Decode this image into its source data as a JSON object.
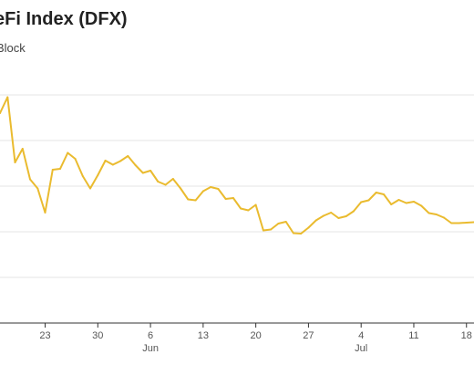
{
  "chart_data": {
    "type": "line",
    "title": "eFi Index (DFX)",
    "subtitle": "Block",
    "xlabel": "",
    "ylabel": "",
    "color": "#eabb2f",
    "grid": true,
    "x_ticks": [
      {
        "day": 23,
        "label": "23",
        "month_label": ""
      },
      {
        "day": 30,
        "label": "30",
        "month_label": ""
      },
      {
        "day": 37,
        "label": "6",
        "month_label": "Jun"
      },
      {
        "day": 44,
        "label": "13",
        "month_label": ""
      },
      {
        "day": 51,
        "label": "20",
        "month_label": ""
      },
      {
        "day": 58,
        "label": "27",
        "month_label": ""
      },
      {
        "day": 65,
        "label": "4",
        "month_label": "Jul"
      },
      {
        "day": 72,
        "label": "11",
        "month_label": ""
      },
      {
        "day": 79,
        "label": "18",
        "month_label": ""
      }
    ],
    "xlim": [
      17,
      80
    ],
    "ylim": [
      0,
      5
    ],
    "series": [
      {
        "x": [
          17,
          18,
          19,
          20,
          21,
          22,
          23,
          24,
          25,
          26,
          27,
          28,
          29,
          30,
          31,
          32,
          33,
          34,
          35,
          36,
          37,
          38,
          39,
          40,
          41,
          42,
          43,
          44,
          45,
          46,
          47,
          48,
          49,
          50,
          51,
          52,
          53,
          54,
          55,
          56,
          57,
          58,
          59,
          60,
          61,
          62,
          63,
          64,
          65,
          66,
          67,
          68,
          69,
          70,
          71,
          72,
          73,
          74,
          75,
          76,
          77,
          78,
          79,
          80
        ],
        "values": [
          4.6,
          4.95,
          3.52,
          3.82,
          3.15,
          2.95,
          2.42,
          3.36,
          3.38,
          3.73,
          3.6,
          3.22,
          2.95,
          3.24,
          3.56,
          3.47,
          3.55,
          3.66,
          3.46,
          3.29,
          3.34,
          3.1,
          3.03,
          3.16,
          2.95,
          2.71,
          2.69,
          2.89,
          2.98,
          2.94,
          2.72,
          2.74,
          2.51,
          2.47,
          2.59,
          2.03,
          2.05,
          2.18,
          2.22,
          1.97,
          1.96,
          2.09,
          2.25,
          2.35,
          2.42,
          2.3,
          2.34,
          2.45,
          2.65,
          2.69,
          2.86,
          2.82,
          2.6,
          2.7,
          2.63,
          2.66,
          2.57,
          2.41,
          2.38,
          2.31,
          2.19,
          2.19,
          2.2,
          2.21
        ]
      }
    ]
  }
}
